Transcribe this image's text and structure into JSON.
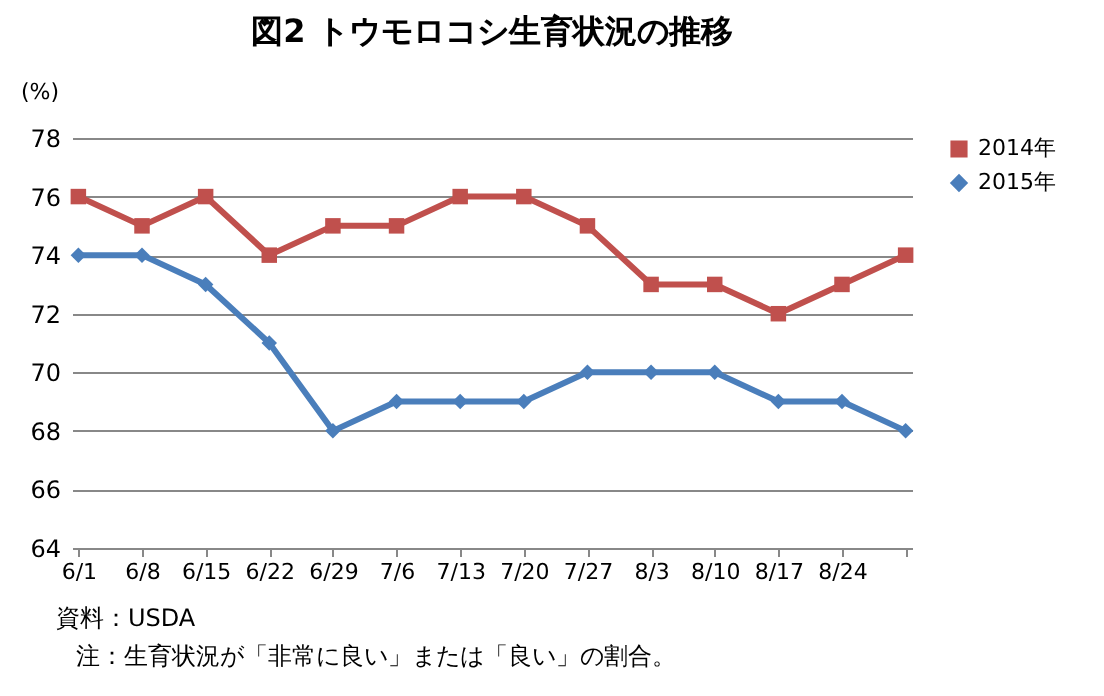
{
  "chart_data": {
    "type": "line",
    "title": "図2 トウモロコシ生育状況の推移",
    "ylabel": "(%)",
    "categories": [
      "6/1",
      "6/8",
      "6/15",
      "6/22",
      "6/29",
      "7/6",
      "7/13",
      "7/20",
      "7/27",
      "8/3",
      "8/10",
      "8/17",
      "8/24",
      null
    ],
    "series": [
      {
        "name": "2014年",
        "color": "#c0504d",
        "marker": "square",
        "values": [
          76,
          75,
          76,
          74,
          75,
          75,
          76,
          76,
          75,
          73,
          73,
          72,
          73,
          74
        ]
      },
      {
        "name": "2015年",
        "color": "#4a7ebb",
        "marker": "diamond",
        "values": [
          74,
          74,
          73,
          71,
          68,
          69,
          69,
          69,
          70,
          70,
          70,
          69,
          69,
          68
        ]
      }
    ],
    "ylim": [
      64,
      78
    ],
    "yticks": [
      64,
      66,
      68,
      70,
      72,
      74,
      76,
      78
    ],
    "grid": "y",
    "legend": "right",
    "annotations": [
      "資料：USDA",
      "注：生育状況が「非常に良い」または「良い」の割合。"
    ]
  }
}
